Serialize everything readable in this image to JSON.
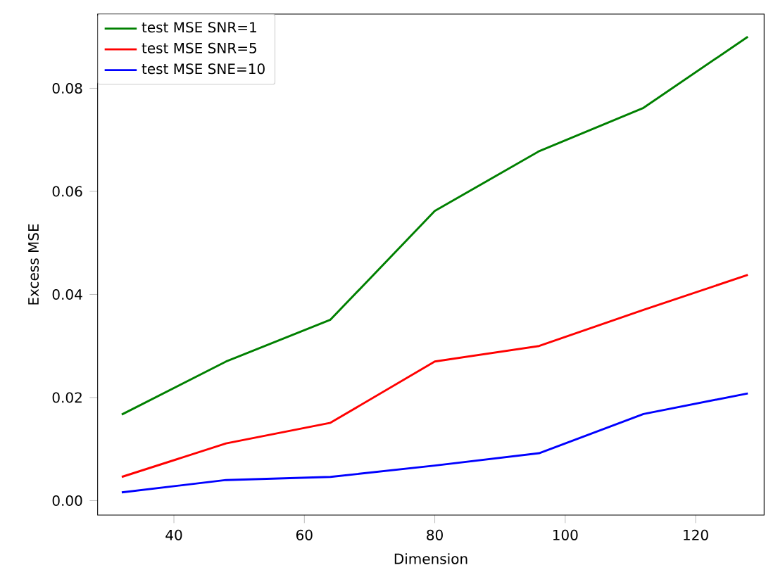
{
  "chart_data": {
    "type": "line",
    "xlabel": "Dimension",
    "ylabel": "Excess MSE",
    "x": [
      32,
      48,
      64,
      80,
      96,
      112,
      128
    ],
    "series": [
      {
        "name": "test MSE SNR=1",
        "color": "#008000",
        "values": [
          0.0167,
          0.027,
          0.0351,
          0.0562,
          0.0678,
          0.0762,
          0.09
        ]
      },
      {
        "name": "test MSE SNR=5",
        "color": "#ff0000",
        "values": [
          0.0046,
          0.0111,
          0.0151,
          0.027,
          0.03,
          0.037,
          0.0438
        ]
      },
      {
        "name": "test MSE SNE=10",
        "color": "#0000ff",
        "values": [
          0.0016,
          0.004,
          0.0046,
          0.0068,
          0.0092,
          0.0168,
          0.0208
        ]
      }
    ],
    "xlim": [
      28.3,
      130.5
    ],
    "ylim": [
      -0.0028,
      0.0944
    ],
    "xticks": [
      40,
      60,
      80,
      100,
      120
    ],
    "yticks": [
      {
        "value": 0,
        "label": "0.00"
      },
      {
        "value": 0.02,
        "label": "0.02"
      },
      {
        "value": 0.04,
        "label": "0.04"
      },
      {
        "value": 0.06,
        "label": "0.06"
      },
      {
        "value": 0.08,
        "label": "0.08"
      }
    ],
    "legend": "top left",
    "grid": false,
    "marker": "none",
    "line_style": "solid"
  }
}
